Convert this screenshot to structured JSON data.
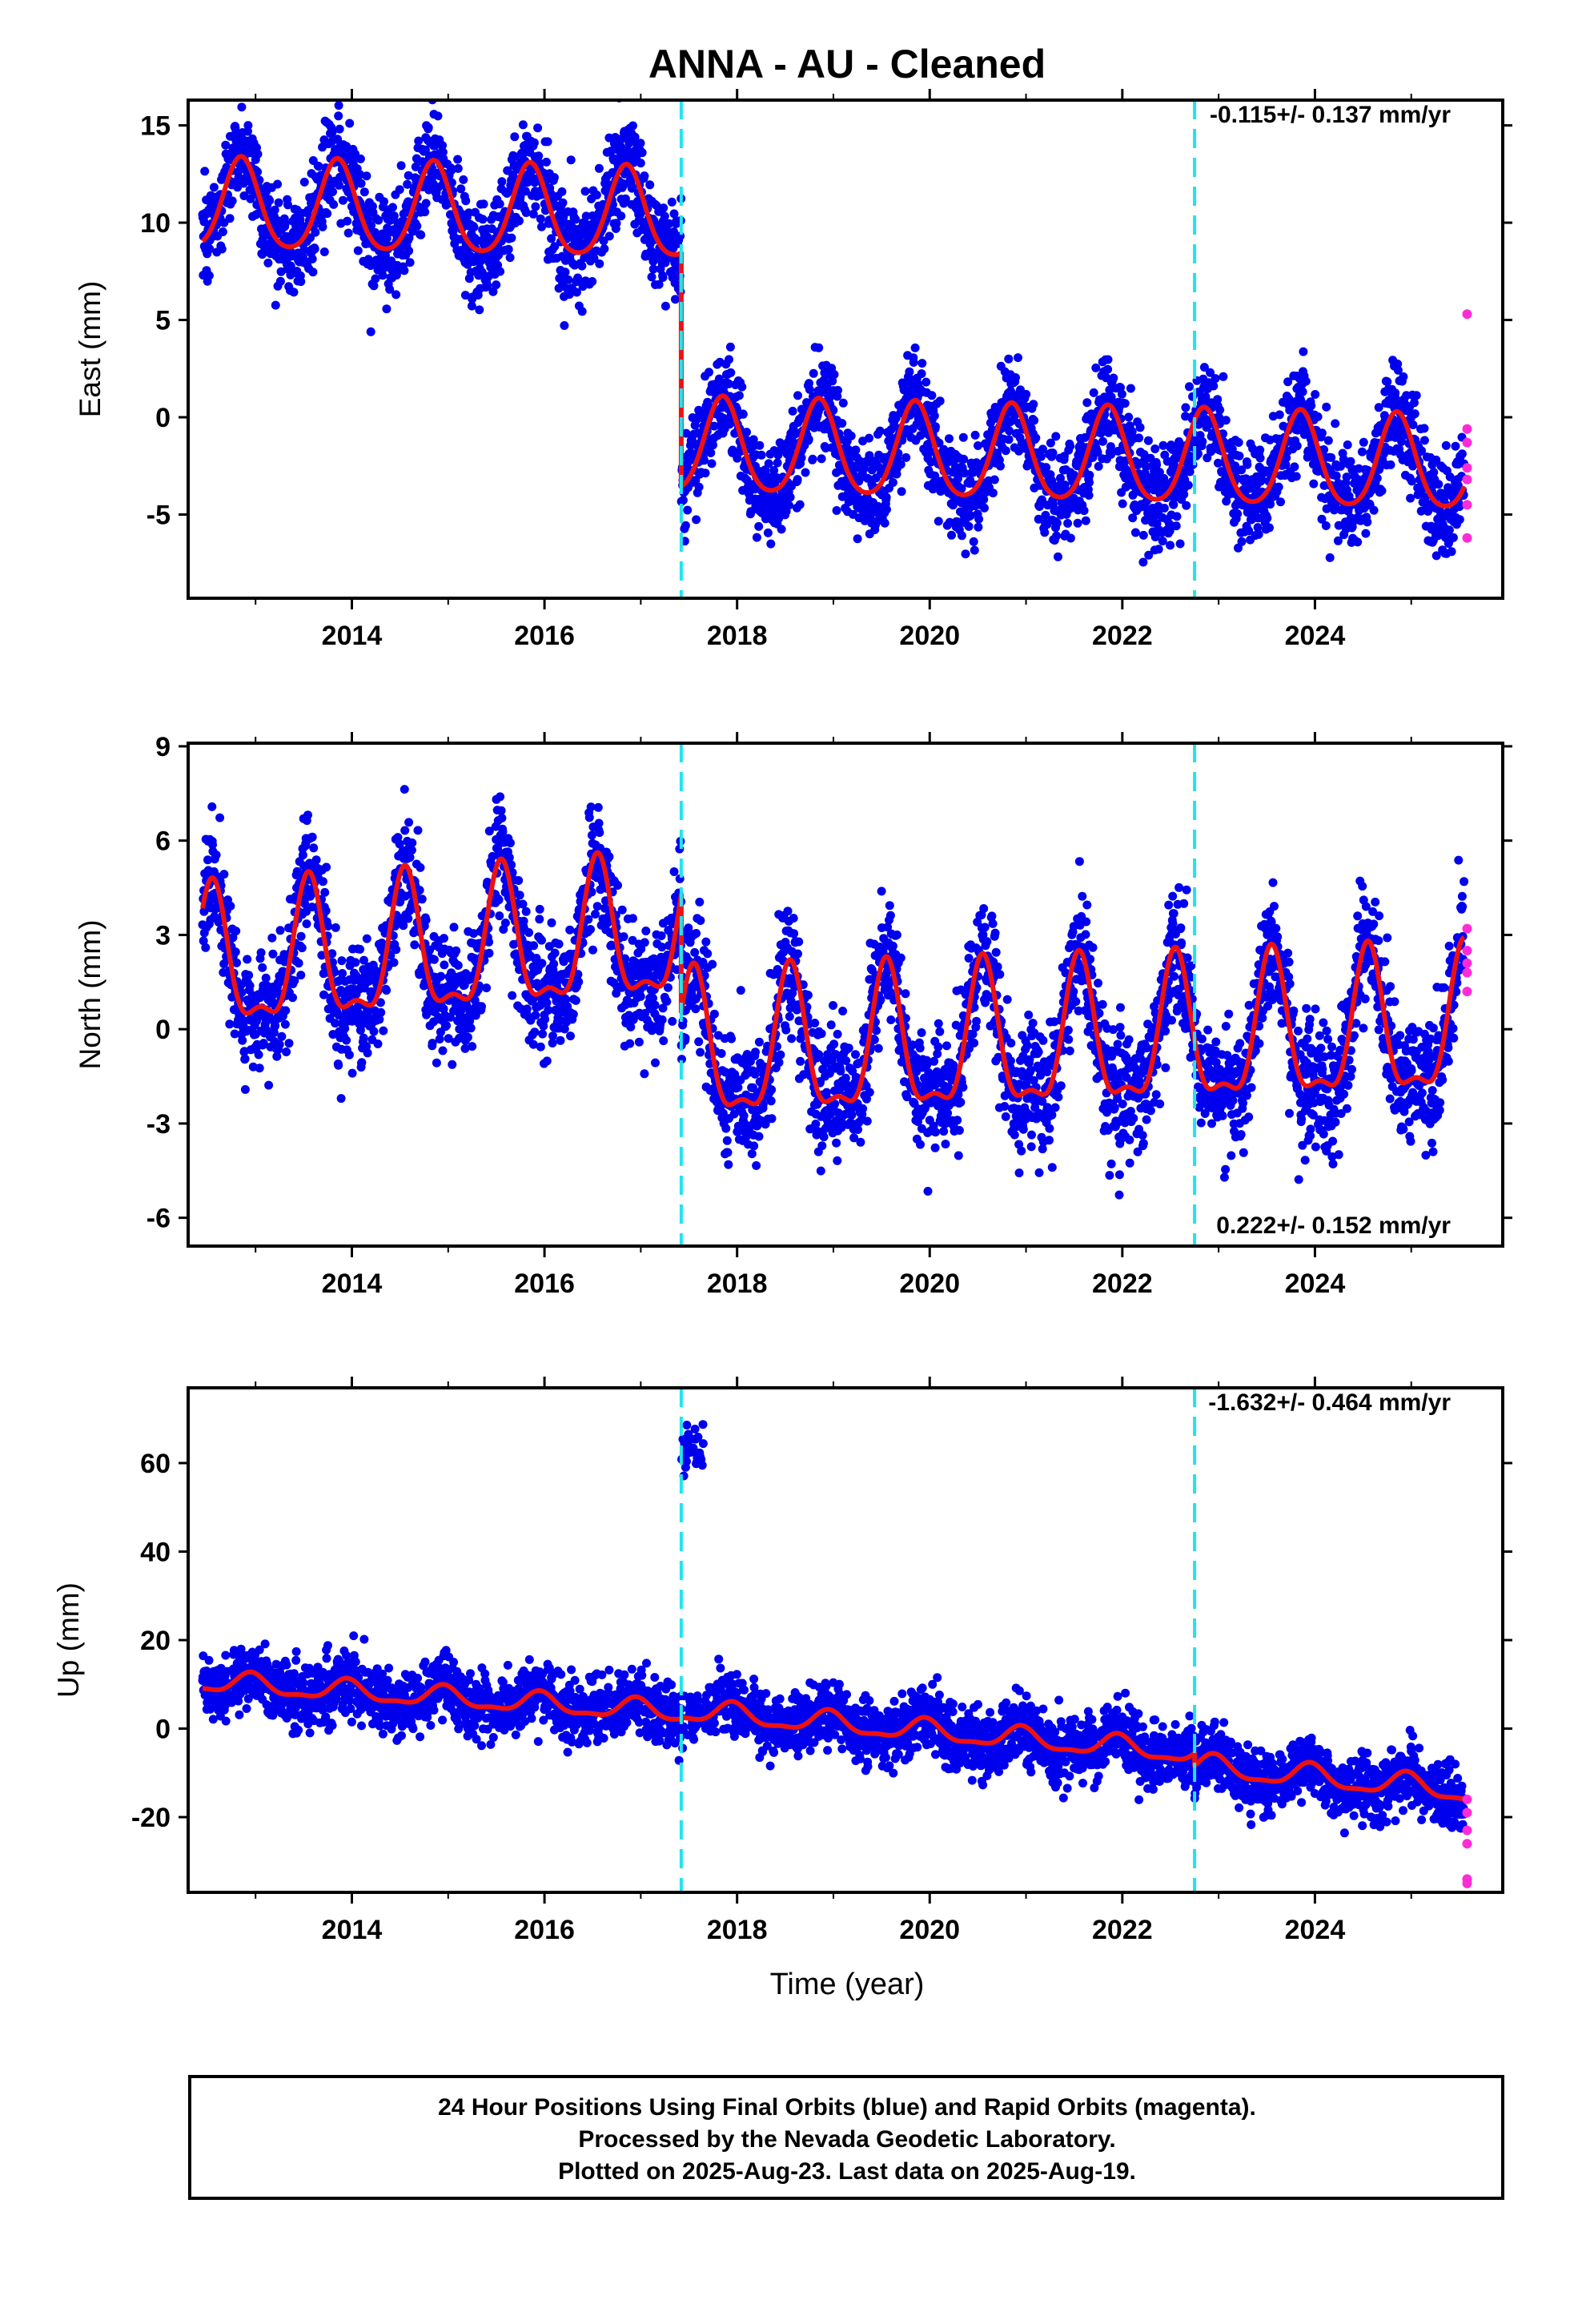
{
  "title": "ANNA  - AU - Cleaned",
  "colors": {
    "final": "#0000ee",
    "rapid": "#ff2bd6",
    "model": "#ee1111",
    "event": "#22e3ee",
    "frame": "#000000"
  },
  "footer": {
    "line1": "24 Hour Positions Using Final Orbits (blue) and Rapid Orbits (magenta).",
    "line2": "Processed by the Nevada Geodetic Laboratory.",
    "line3": "Plotted on 2025-Aug-23. Last data on 2025-Aug-19."
  },
  "chart_data": [
    {
      "type": "scatter",
      "component": "East",
      "ylabel": "East (mm)",
      "xlabel": "",
      "xlim": [
        2012.3,
        2025.95
      ],
      "ylim": [
        -9.3,
        16.3
      ],
      "yticks": [
        -5,
        0,
        5,
        10,
        15
      ],
      "xticks": [
        2014,
        2016,
        2018,
        2020,
        2022,
        2024
      ],
      "rate_label": "-0.115+/- 0.137 mm/yr",
      "rate_position": "top-right",
      "event_lines_x": [
        2017.42,
        2022.75
      ],
      "data_span": [
        2012.45,
        2025.55
      ],
      "segments": [
        {
          "from": 2012.45,
          "to": 2017.42,
          "offset": 10.8,
          "trend": -0.1,
          "annual_amp": 2.3,
          "annual_phase_peak": 0.85,
          "semi_amp": 0.35,
          "scatter_sd": 1.25
        },
        {
          "from": 2017.42,
          "to": 2025.55,
          "offset": -1.6,
          "trend": -0.115,
          "annual_amp": 2.4,
          "annual_phase_peak": 0.85,
          "semi_amp": 0.35,
          "scatter_sd": 1.25
        }
      ],
      "rapid_points": [
        {
          "x": 2025.58,
          "y": 5.3
        },
        {
          "x": 2025.58,
          "y": -0.6
        },
        {
          "x": 2025.58,
          "y": -1.3
        },
        {
          "x": 2025.58,
          "y": -2.6
        },
        {
          "x": 2025.58,
          "y": -3.2
        },
        {
          "x": 2025.58,
          "y": -4.5
        },
        {
          "x": 2025.58,
          "y": -6.2
        }
      ]
    },
    {
      "type": "scatter",
      "component": "North",
      "ylabel": "North (mm)",
      "xlabel": "",
      "xlim": [
        2012.3,
        2025.95
      ],
      "ylim": [
        -6.9,
        9.1
      ],
      "yticks": [
        -6,
        -3,
        0,
        3,
        6,
        9
      ],
      "xticks": [
        2014,
        2016,
        2018,
        2020,
        2022,
        2024
      ],
      "rate_label": "0.222+/- 0.152 mm/yr",
      "rate_position": "bottom-right",
      "event_lines_x": [
        2017.42,
        2022.75
      ],
      "data_span": [
        2012.45,
        2025.55
      ],
      "segments": [
        {
          "from": 2012.45,
          "to": 2017.42,
          "offset": 1.9,
          "trend": 0.2,
          "annual_amp": 2.1,
          "annual_phase_peak": 0.55,
          "semi_amp": 0.8,
          "scatter_sd": 0.95
        },
        {
          "from": 2017.42,
          "to": 2025.55,
          "offset": -0.9,
          "trend": 0.1,
          "annual_amp": 2.2,
          "annual_phase_peak": 0.55,
          "semi_amp": 0.8,
          "scatter_sd": 0.95
        }
      ],
      "rapid_points": [
        {
          "x": 2025.58,
          "y": 3.2
        },
        {
          "x": 2025.58,
          "y": 2.5
        },
        {
          "x": 2025.58,
          "y": 1.8
        },
        {
          "x": 2025.58,
          "y": 1.2
        },
        {
          "x": 2025.58,
          "y": 2.1
        }
      ]
    },
    {
      "type": "scatter",
      "component": "Up",
      "ylabel": "Up (mm)",
      "xlabel": "Time (year)",
      "xlim": [
        2012.3,
        2025.95
      ],
      "ylim": [
        -37,
        77
      ],
      "yticks": [
        -20,
        0,
        20,
        40,
        60
      ],
      "xticks": [
        2014,
        2016,
        2018,
        2020,
        2022,
        2024
      ],
      "rate_label": "-1.632+/- 0.464 mm/yr",
      "rate_position": "top-right",
      "event_lines_x": [
        2017.42,
        2022.75
      ],
      "data_span": [
        2012.45,
        2025.55
      ],
      "segments": [
        {
          "from": 2012.45,
          "to": 2017.42,
          "offset": 10.5,
          "trend": -1.4,
          "annual_amp": 2.2,
          "annual_phase_peak": 0.95,
          "semi_amp": 0.8,
          "scatter_sd": 3.6
        },
        {
          "from": 2017.42,
          "to": 2022.75,
          "offset": 4.0,
          "trend": -1.8,
          "annual_amp": 2.3,
          "annual_phase_peak": 0.95,
          "semi_amp": 0.8,
          "scatter_sd": 3.6
        },
        {
          "from": 2022.75,
          "to": 2025.55,
          "offset": -8.5,
          "trend": -2.0,
          "annual_amp": 2.5,
          "annual_phase_peak": 0.95,
          "semi_amp": 0.8,
          "scatter_sd": 3.6
        }
      ],
      "outlier_cluster": {
        "from": 2017.42,
        "to": 2017.65,
        "y_center": 62,
        "y_spread": 5
      },
      "rapid_points": [
        {
          "x": 2025.58,
          "y": -16
        },
        {
          "x": 2025.58,
          "y": -19
        },
        {
          "x": 2025.58,
          "y": -23
        },
        {
          "x": 2025.58,
          "y": -26
        },
        {
          "x": 2025.58,
          "y": -34
        },
        {
          "x": 2025.58,
          "y": -35
        }
      ]
    }
  ]
}
